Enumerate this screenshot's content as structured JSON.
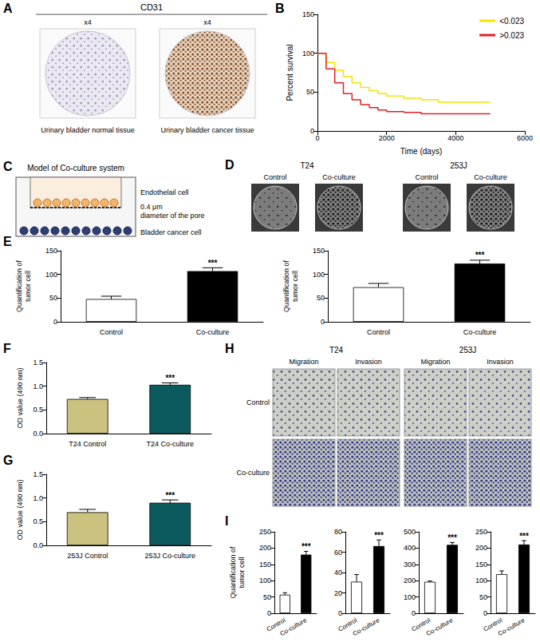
{
  "panel_labels": [
    "A",
    "B",
    "C",
    "D",
    "E",
    "F",
    "G",
    "H",
    "I"
  ],
  "panel_a": {
    "title": "CD31",
    "images": [
      {
        "magnification": "x4",
        "caption": "Urinary bladder normal tissue"
      },
      {
        "magnification": "x4",
        "caption": "Urinary bladder cancer tissue"
      }
    ]
  },
  "panel_c": {
    "title": "Model of Co-culture system",
    "upper_label": "Endothelail cell",
    "pore_label": [
      "0.4 μm",
      "diameter of the pore"
    ],
    "lower_label": "Bladder cancer cell"
  },
  "panel_d": {
    "groups": [
      {
        "name": "T24",
        "columns": [
          "Control",
          "Co-culture"
        ]
      },
      {
        "name": "253J",
        "columns": [
          "Control",
          "Co-culture"
        ]
      }
    ]
  },
  "panel_h": {
    "groups": [
      {
        "name": "T24",
        "columns": [
          "Migration",
          "Invasion"
        ]
      },
      {
        "name": "253J",
        "columns": [
          "Migration",
          "Invasion"
        ]
      }
    ],
    "rows": [
      "Control",
      "Co-culture"
    ]
  },
  "chart_data": [
    {
      "type": "line",
      "x": [
        0,
        250,
        500,
        750,
        1000,
        1250,
        1500,
        1750,
        2000,
        2500,
        3000,
        3500,
        4000,
        4500,
        5000
      ],
      "series": [
        {
          "name": "<0.023",
          "color": "#f2e400",
          "values": [
            100,
            88,
            78,
            70,
            62,
            56,
            52,
            48,
            45,
            42,
            40,
            37,
            37,
            37,
            37
          ]
        },
        {
          "name": ">0.023",
          "color": "#e41f26",
          "values": [
            100,
            80,
            62,
            48,
            40,
            34,
            30,
            27,
            25,
            24,
            22,
            22,
            22,
            22,
            22
          ]
        }
      ],
      "xlabel": "Time (days)",
      "ylabel": "Percent survival",
      "xlim": [
        0,
        6000
      ],
      "xticks": [
        0,
        2000,
        4000,
        6000
      ],
      "ylim": [
        0,
        150
      ],
      "yticks": [
        0,
        50,
        100,
        150
      ],
      "line_style": "step",
      "legend": "upper right",
      "grid": false
    },
    {
      "type": "bar",
      "categories": [
        "Control",
        "Co-culture"
      ],
      "values": [
        48,
        107
      ],
      "errors": [
        6,
        7
      ],
      "colors": [
        "#ffffff",
        "#000000"
      ],
      "ylabel": "Quantification of\ntumor cell",
      "ylim": [
        0,
        150
      ],
      "yticks": [
        0,
        50,
        100,
        150
      ],
      "annotations": [
        {
          "category": "Co-culture",
          "text": "***"
        }
      ],
      "grid": false
    },
    {
      "type": "bar",
      "categories": [
        "Control",
        "Co-culture"
      ],
      "values": [
        73,
        123
      ],
      "errors": [
        8,
        7
      ],
      "colors": [
        "#ffffff",
        "#000000"
      ],
      "ylabel": "Quantification of\ntumor cell",
      "ylim": [
        0,
        150
      ],
      "yticks": [
        0,
        50,
        100,
        150
      ],
      "annotations": [
        {
          "category": "Co-culture",
          "text": "***"
        }
      ],
      "grid": false
    },
    {
      "type": "bar",
      "categories": [
        "T24 Control",
        "T24 Co-culture"
      ],
      "values": [
        0.73,
        1.03
      ],
      "errors": [
        0.03,
        0.04
      ],
      "colors": [
        "#cbc27f",
        "#0b5a5d"
      ],
      "ylabel": "OD value (490 nm)",
      "ylim": [
        0,
        1.5
      ],
      "yticks": [
        {
          "value": 0,
          "label": "0.0"
        },
        0.5,
        {
          "value": 1,
          "label": "1.0"
        },
        1.5
      ],
      "annotations": [
        {
          "category": "T24 Co-culture",
          "text": "***"
        }
      ],
      "grid": false
    },
    {
      "type": "bar",
      "categories": [
        "253J Control",
        "253J Co-culture"
      ],
      "values": [
        0.7,
        0.9
      ],
      "errors": [
        0.06,
        0.06
      ],
      "colors": [
        "#cbc27f",
        "#0b5a5d"
      ],
      "ylabel": "OD value (490 nm)",
      "ylim": [
        0,
        1.5
      ],
      "yticks": [
        {
          "value": 0,
          "label": "0.0"
        },
        0.5,
        {
          "value": 1,
          "label": "1.0"
        },
        1.5
      ],
      "annotations": [
        {
          "category": "253J Co-culture",
          "text": "***"
        }
      ],
      "grid": false
    },
    {
      "type": "bar",
      "categories": [
        "Control",
        "Co-culture"
      ],
      "values": [
        57,
        180
      ],
      "errors": [
        6,
        10
      ],
      "colors": [
        "#ffffff",
        "#000000"
      ],
      "ylabel": "Quantification of\ntumor cell",
      "ylim": [
        0,
        250
      ],
      "yticks": [
        0,
        50,
        100,
        150,
        200,
        250
      ],
      "annotations": [
        {
          "category": "Co-culture",
          "text": "***"
        }
      ],
      "grid": false
    },
    {
      "type": "bar",
      "categories": [
        "Control",
        "Co-culture"
      ],
      "values": [
        31,
        66
      ],
      "errors": [
        7,
        6
      ],
      "colors": [
        "#ffffff",
        "#000000"
      ],
      "ylim": [
        0,
        80
      ],
      "yticks": [
        0,
        20,
        40,
        60,
        80
      ],
      "annotations": [
        {
          "category": "Co-culture",
          "text": "***"
        }
      ],
      "grid": false
    },
    {
      "type": "bar",
      "categories": [
        "Control",
        "Co-culture"
      ],
      "values": [
        193,
        420
      ],
      "errors": [
        5,
        14
      ],
      "colors": [
        "#ffffff",
        "#000000"
      ],
      "ylim": [
        0,
        500
      ],
      "yticks": [
        0,
        100,
        200,
        300,
        400,
        500
      ],
      "annotations": [
        {
          "category": "Co-culture",
          "text": "***"
        }
      ],
      "grid": false
    },
    {
      "type": "bar",
      "categories": [
        "Control",
        "Co-culture"
      ],
      "values": [
        120,
        211
      ],
      "errors": [
        10,
        12
      ],
      "colors": [
        "#ffffff",
        "#000000"
      ],
      "ylim": [
        0,
        250
      ],
      "yticks": [
        0,
        50,
        100,
        150,
        200,
        250
      ],
      "annotations": [
        {
          "category": "Co-culture",
          "text": "***"
        }
      ],
      "grid": false
    }
  ]
}
